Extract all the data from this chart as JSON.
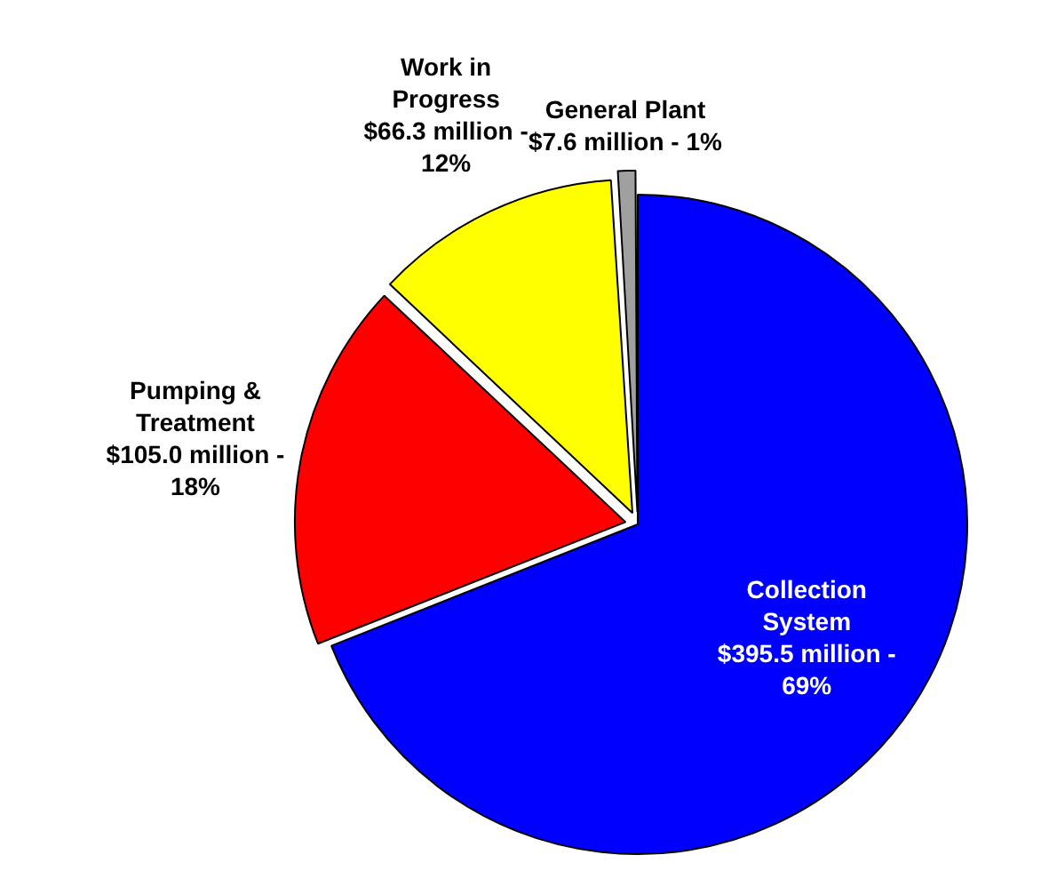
{
  "chart_data": {
    "type": "pie",
    "categories": [
      "Collection System $395.5 million - 69%",
      "Pumping & Treatment $105.0 million - 18%",
      "Work in Progress $66.3 million - 12%",
      "General Plant $7.6 million - 1%"
    ],
    "values": [
      69,
      18,
      12,
      1
    ],
    "colors": [
      "#0000ff",
      "#ff0000",
      "#ffff00",
      "#a0a0a0"
    ],
    "legend": false
  }
}
